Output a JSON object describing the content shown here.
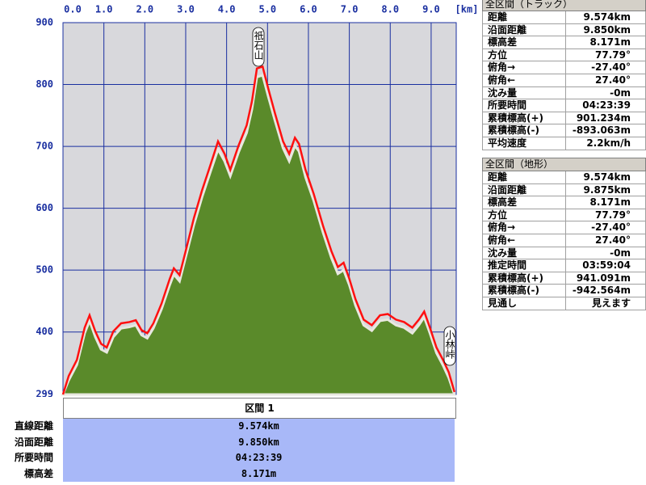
{
  "chart_data": {
    "type": "area",
    "x_unit": "[km]",
    "x": [
      0.0,
      0.14,
      0.34,
      0.53,
      0.65,
      0.79,
      0.93,
      1.07,
      1.23,
      1.42,
      1.62,
      1.78,
      1.92,
      2.06,
      2.21,
      2.41,
      2.61,
      2.71,
      2.85,
      3.0,
      3.2,
      3.4,
      3.6,
      3.79,
      3.95,
      4.09,
      4.29,
      4.49,
      4.62,
      4.74,
      4.88,
      5.02,
      5.18,
      5.38,
      5.53,
      5.67,
      5.77,
      5.93,
      6.13,
      6.36,
      6.56,
      6.72,
      6.86,
      7.0,
      7.15,
      7.35,
      7.55,
      7.75,
      7.94,
      8.14,
      8.34,
      8.54,
      8.7,
      8.83,
      8.97,
      9.13,
      9.29,
      9.43,
      9.57
    ],
    "series": [
      {
        "kind": "area",
        "color": "#5a8a2a",
        "values": [
          299,
          322,
          347,
          398,
          418,
          392,
          372,
          367,
          392,
          406,
          408,
          411,
          395,
          390,
          406,
          437,
          476,
          493,
          482,
          521,
          573,
          618,
          658,
          695,
          676,
          652,
          690,
          722,
          760,
          812,
          815,
          780,
          742,
          697,
          676,
          701,
          692,
          650,
          612,
          560,
          520,
          494,
          500,
          476,
          443,
          411,
          402,
          418,
          420,
          411,
          407,
          398,
          411,
          424,
          398,
          366,
          346,
          326,
          299
        ]
      },
      {
        "kind": "line",
        "color": "#ff1010",
        "values": [
          299,
          329,
          355,
          407,
          427,
          401,
          381,
          375,
          401,
          414,
          416,
          419,
          403,
          398,
          414,
          446,
          486,
          503,
          492,
          531,
          584,
          629,
          669,
          708,
          688,
          662,
          701,
          734,
          773,
          826,
          829,
          793,
          754,
          708,
          688,
          714,
          704,
          662,
          623,
          571,
          531,
          505,
          512,
          486,
          453,
          420,
          411,
          427,
          429,
          420,
          416,
          407,
          420,
          433,
          407,
          375,
          355,
          335,
          303
        ]
      }
    ],
    "xlim": [
      0,
      9.574
    ],
    "ylim": [
      299,
      900
    ],
    "xticks": [
      {
        "value": 0,
        "label": "0.0"
      },
      {
        "value": 1,
        "label": "1.0"
      },
      {
        "value": 2,
        "label": "2.0"
      },
      {
        "value": 3,
        "label": "3.0"
      },
      {
        "value": 4,
        "label": "4.0"
      },
      {
        "value": 5,
        "label": "5.0"
      },
      {
        "value": 6,
        "label": "6.0"
      },
      {
        "value": 7,
        "label": "7.0"
      },
      {
        "value": 8,
        "label": "8.0"
      },
      {
        "value": 9,
        "label": "9.0"
      }
    ],
    "yticks": [
      299,
      400,
      500,
      600,
      700,
      800,
      900
    ],
    "grid": true,
    "annotations": [
      "祇石山",
      "小林峠"
    ]
  },
  "panels": [
    {
      "title": "全区間（トラック）",
      "rows": [
        [
          "距離",
          "9.574km"
        ],
        [
          "沿面距離",
          "9.850km"
        ],
        [
          "標高差",
          "8.171m"
        ],
        [
          "方位",
          "77.79°"
        ],
        [
          "俯角→",
          "-27.40°"
        ],
        [
          "俯角←",
          "27.40°"
        ],
        [
          "沈み量",
          "-0m"
        ],
        [
          "所要時間",
          "04:23:39"
        ],
        [
          "累積標高(+)",
          "901.234m"
        ],
        [
          "累積標高(-)",
          "-893.063m"
        ],
        [
          "平均速度",
          "2.2km/h"
        ]
      ]
    },
    {
      "title": "全区間（地形）",
      "rows": [
        [
          "距離",
          "9.574km"
        ],
        [
          "沿面距離",
          "9.875km"
        ],
        [
          "標高差",
          "8.171m"
        ],
        [
          "方位",
          "77.79°"
        ],
        [
          "俯角→",
          "-27.40°"
        ],
        [
          "俯角←",
          "27.40°"
        ],
        [
          "沈み量",
          "-0m"
        ],
        [
          "推定時間",
          "03:59:04"
        ],
        [
          "累積標高(+)",
          "941.091m"
        ],
        [
          "累積標高(-)",
          "-942.564m"
        ],
        [
          "見通し",
          "見えます"
        ]
      ]
    }
  ],
  "section": {
    "title": "区間 1",
    "rows": [
      [
        "直線距離",
        "9.574km"
      ],
      [
        "沿面距離",
        "9.850km"
      ],
      [
        "所要時間",
        "04:23:39"
      ],
      [
        "標高差",
        "8.171m"
      ]
    ]
  }
}
